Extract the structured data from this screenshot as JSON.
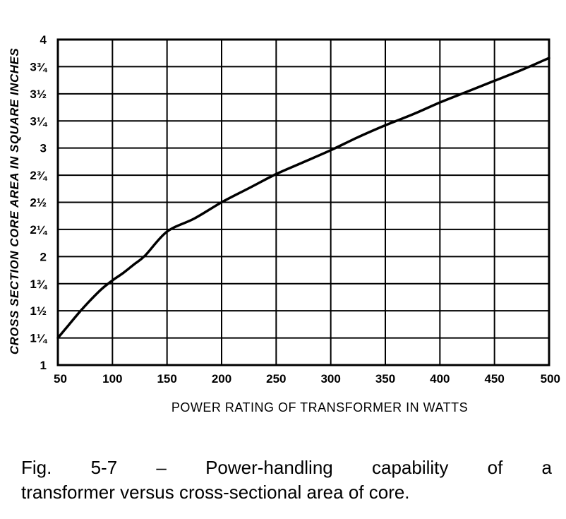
{
  "chart_data": {
    "type": "line",
    "title": "",
    "xlabel": "POWER RATING OF TRANSFORMER IN WATTS",
    "ylabel": "CROSS SECTION CORE AREA IN SQUARE INCHES",
    "x_ticks": [
      {
        "value": 50,
        "label": "50"
      },
      {
        "value": 100,
        "label": "100"
      },
      {
        "value": 150,
        "label": "150"
      },
      {
        "value": 200,
        "label": "200"
      },
      {
        "value": 250,
        "label": "250"
      },
      {
        "value": 300,
        "label": "300"
      },
      {
        "value": 350,
        "label": "350"
      },
      {
        "value": 400,
        "label": "400"
      },
      {
        "value": 450,
        "label": "450"
      },
      {
        "value": 500,
        "label": "500"
      }
    ],
    "y_ticks": [
      {
        "value": 1,
        "label": "1"
      },
      {
        "value": 1.25,
        "label": "1¼"
      },
      {
        "value": 1.5,
        "label": "1½"
      },
      {
        "value": 1.75,
        "label": "1¾"
      },
      {
        "value": 2,
        "label": "2"
      },
      {
        "value": 2.25,
        "label": "2¼"
      },
      {
        "value": 2.5,
        "label": "2½"
      },
      {
        "value": 2.75,
        "label": "2¾"
      },
      {
        "value": 3,
        "label": "3"
      },
      {
        "value": 3.25,
        "label": "3¼"
      },
      {
        "value": 3.5,
        "label": "3½"
      },
      {
        "value": 3.75,
        "label": "3¾"
      },
      {
        "value": 4,
        "label": "4"
      }
    ],
    "xlim": [
      50,
      500
    ],
    "ylim": [
      1,
      4
    ],
    "grid": true,
    "series": [
      {
        "x": [
          50,
          60,
          70,
          80,
          90,
          100,
          110,
          120,
          130,
          150,
          175,
          200,
          225,
          250,
          275,
          300,
          325,
          350,
          375,
          400,
          425,
          450,
          475,
          500
        ],
        "y": [
          1.25,
          1.37,
          1.49,
          1.6,
          1.7,
          1.78,
          1.85,
          1.93,
          2.01,
          2.23,
          2.35,
          2.5,
          2.63,
          2.76,
          2.87,
          2.98,
          3.1,
          3.21,
          3.31,
          3.42,
          3.52,
          3.62,
          3.72,
          3.83
        ]
      }
    ]
  },
  "caption": {
    "line1": "Fig. 5-7 – Power-handling capability of a",
    "line2": "transformer versus cross-sectional area of core."
  }
}
